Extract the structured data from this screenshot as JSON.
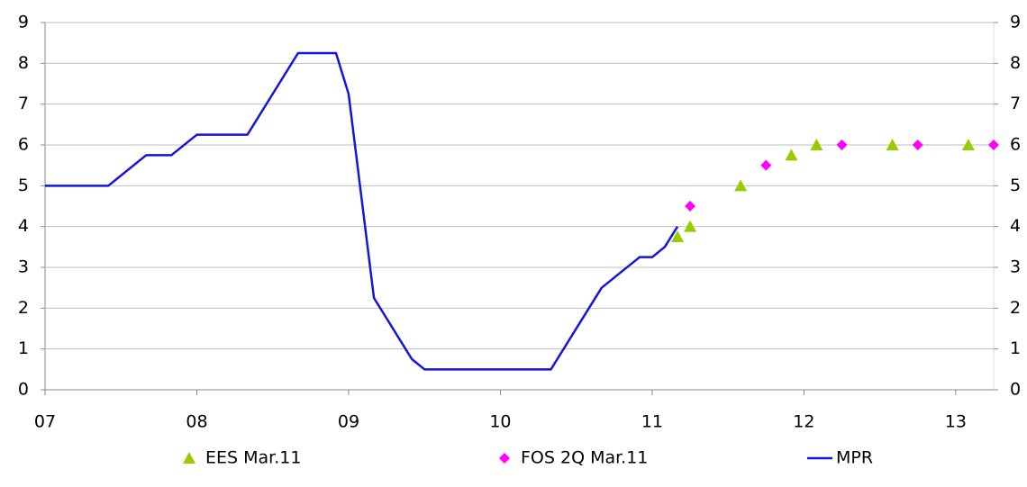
{
  "chart_data": {
    "type": "line",
    "xlim": [
      7,
      13.25
    ],
    "xticks": [
      {
        "value": 7,
        "label": "07"
      },
      {
        "value": 8,
        "label": "08"
      },
      {
        "value": 9,
        "label": "09"
      },
      {
        "value": 10,
        "label": "10"
      },
      {
        "value": 11,
        "label": "11"
      },
      {
        "value": 12,
        "label": "12"
      },
      {
        "value": 13,
        "label": "13"
      }
    ],
    "ylim": [
      0,
      9
    ],
    "yticks": [
      0,
      1,
      2,
      3,
      4,
      5,
      6,
      7,
      8,
      9
    ],
    "y2lim": [
      0,
      9
    ],
    "y2ticks": [
      0,
      1,
      2,
      3,
      4,
      5,
      6,
      7,
      8,
      9
    ],
    "grid": true,
    "legend": "bottom",
    "series": [
      {
        "name": "EES Mar.11",
        "color": "#99cc00",
        "marker": "triangle",
        "x": [
          11.167,
          11.25,
          11.583,
          11.917,
          12.083,
          12.583,
          13.083
        ],
        "values": [
          3.75,
          4,
          5,
          5.75,
          6,
          6,
          6
        ]
      },
      {
        "name": "FOS 2Q Mar.11",
        "color": "#ff00ff",
        "marker": "diamond",
        "x": [
          11.25,
          11.75,
          12.25,
          12.75,
          13.25
        ],
        "values": [
          4.5,
          5.5,
          6,
          6,
          6
        ]
      },
      {
        "name": "MPR",
        "color": "#1414e0",
        "marker": "line",
        "x": [
          7.0,
          7.417,
          7.667,
          7.833,
          8.0,
          8.333,
          8.667,
          8.917,
          9.0,
          9.167,
          9.417,
          9.5,
          10.333,
          10.667,
          10.917,
          11.0,
          11.083,
          11.167
        ],
        "values": [
          5,
          5,
          5.75,
          5.75,
          6.25,
          6.25,
          8.25,
          8.25,
          7.25,
          2.25,
          0.75,
          0.5,
          0.5,
          2.5,
          3.25,
          3.25,
          3.5,
          4
        ]
      }
    ]
  }
}
